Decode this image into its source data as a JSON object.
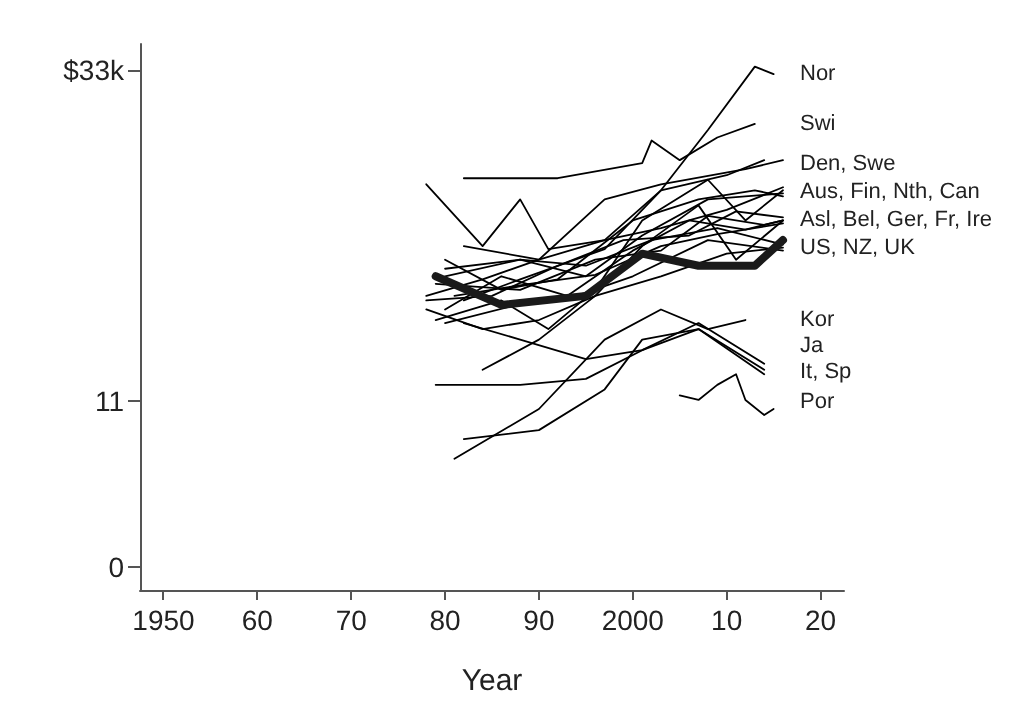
{
  "chart_data": {
    "type": "line",
    "xlabel": "Year",
    "xlim": [
      1947.5,
      2022.5
    ],
    "ylim": [
      -1.5,
      34.7
    ],
    "xticks": [
      1950,
      {
        "value": 1960,
        "label": "60"
      },
      {
        "value": 1970,
        "label": "70"
      },
      {
        "value": 1980,
        "label": "80"
      },
      {
        "value": 1990,
        "label": "90"
      },
      2000,
      {
        "value": 2010,
        "label": "10"
      },
      {
        "value": 2020,
        "label": "20"
      }
    ],
    "yticks": [
      0,
      11,
      {
        "value": 33,
        "label": "$33k"
      }
    ],
    "grid": false,
    "marker": "none",
    "line_style": "solid",
    "series": [
      {
        "color": "#1a1a1a",
        "x": [
          1979,
          1986,
          1995,
          2001,
          2007,
          2013,
          2016
        ],
        "values": [
          19.3,
          17.4,
          18.0,
          20.8,
          20.0,
          20.0,
          21.7
        ]
      },
      {
        "color": "#000000",
        "x": [
          1982,
          1988,
          1997,
          2003,
          2008,
          2013,
          2015
        ],
        "values": [
          17.7,
          19.1,
          21.1,
          25.0,
          29.0,
          33.2,
          32.7
        ]
      },
      {
        "color": "#000000",
        "x": [
          1982,
          1992,
          2001,
          2002,
          2005,
          2009,
          2013
        ],
        "values": [
          25.8,
          25.8,
          26.8,
          28.3,
          27.0,
          28.5,
          29.4
        ]
      },
      {
        "color": "#000000",
        "x": [
          1978,
          1984,
          1988,
          1991,
          1997,
          2003,
          2010,
          2014
        ],
        "values": [
          25.4,
          21.3,
          24.4,
          21.1,
          21.7,
          25.0,
          26.0,
          27.0
        ]
      },
      {
        "color": "#000000",
        "x": [
          1978,
          1984,
          1990,
          1997,
          2003,
          2012,
          2016
        ],
        "values": [
          18.0,
          19.1,
          20.4,
          24.4,
          25.4,
          26.4,
          27.0
        ]
      },
      {
        "color": "#000000",
        "x": [
          1980,
          1986,
          1992,
          2000,
          2007,
          2013,
          2016
        ],
        "values": [
          20.4,
          18.4,
          19.1,
          23.0,
          24.4,
          25.0,
          24.6
        ]
      },
      {
        "color": "#000000",
        "x": [
          1979,
          1986,
          1991,
          1996,
          2001,
          2008,
          2012,
          2016
        ],
        "values": [
          16.4,
          17.7,
          15.8,
          18.4,
          23.0,
          25.7,
          23.0,
          25.0
        ]
      },
      {
        "color": "#000000",
        "x": [
          1980,
          1988,
          1995,
          2001,
          2008,
          2016
        ],
        "values": [
          19.3,
          20.4,
          19.3,
          22.0,
          24.4,
          24.8
        ]
      },
      {
        "color": "#000000",
        "x": [
          1982,
          1990,
          1997,
          2003,
          2010,
          2016
        ],
        "values": [
          21.3,
          20.4,
          21.7,
          22.5,
          23.7,
          25.2
        ]
      },
      {
        "color": "#000000",
        "x": [
          1980,
          1986,
          1993,
          2000,
          2006,
          2012,
          2016
        ],
        "values": [
          17.1,
          19.3,
          18.0,
          21.0,
          23.0,
          22.4,
          23.0
        ]
      },
      {
        "color": "#000000",
        "x": [
          1978,
          1985,
          1992,
          1999,
          2006,
          2011,
          2016
        ],
        "values": [
          17.7,
          18.0,
          20.0,
          21.7,
          22.0,
          23.6,
          23.2
        ]
      },
      {
        "color": "#000000",
        "x": [
          1979,
          1988,
          1996,
          2003,
          2008,
          2014,
          2016
        ],
        "values": [
          18.8,
          18.4,
          20.4,
          21.0,
          23.3,
          22.7,
          23.0
        ]
      },
      {
        "color": "#000000",
        "x": [
          1981,
          1989,
          1996,
          2003,
          2009,
          2016
        ],
        "values": [
          18.0,
          18.8,
          19.4,
          21.3,
          22.1,
          22.8
        ]
      },
      {
        "color": "#000000",
        "x": [
          1984,
          1990,
          1996,
          2001,
          2007,
          2011,
          2016
        ],
        "values": [
          13.1,
          15.1,
          18.0,
          21.3,
          24.0,
          20.4,
          23.0
        ]
      },
      {
        "color": "#000000",
        "x": [
          1980,
          1988,
          1995,
          2002,
          2009,
          2016
        ],
        "values": [
          19.8,
          20.4,
          20.0,
          21.7,
          22.5,
          21.4
        ]
      },
      {
        "color": "#000000",
        "x": [
          1978,
          1984,
          1990,
          1996,
          2003,
          2010,
          2016
        ],
        "values": [
          17.1,
          15.8,
          16.4,
          18.0,
          19.3,
          20.8,
          21.2
        ]
      },
      {
        "color": "#000000",
        "x": [
          1980,
          1987,
          1994,
          2000,
          2008,
          2016
        ],
        "values": [
          16.2,
          17.3,
          18.0,
          19.3,
          21.7,
          21.0
        ]
      },
      {
        "color": "#000000",
        "x": [
          1981,
          1990,
          1997,
          2003,
          2008,
          2012
        ],
        "values": [
          7.2,
          10.5,
          15.1,
          17.1,
          15.8,
          16.4
        ]
      },
      {
        "color": "#000000",
        "x": [
          1982,
          1988,
          1995,
          2001,
          2007,
          2014
        ],
        "values": [
          16.2,
          15.1,
          13.8,
          14.4,
          16.2,
          13.5
        ]
      },
      {
        "color": "#000000",
        "x": [
          1979,
          1988,
          1995,
          2001,
          2007,
          2014
        ],
        "values": [
          12.1,
          12.1,
          12.5,
          14.4,
          15.8,
          12.8
        ]
      },
      {
        "color": "#000000",
        "x": [
          1982,
          1990,
          1997,
          2001,
          2007,
          2014
        ],
        "values": [
          8.5,
          9.1,
          11.8,
          15.1,
          15.8,
          13.1
        ]
      },
      {
        "color": "#000000",
        "x": [
          2005,
          2007,
          2009,
          2011,
          2012,
          2014,
          2015
        ],
        "values": [
          11.4,
          11.1,
          12.1,
          12.8,
          11.1,
          10.1,
          10.5
        ]
      }
    ],
    "annotations": [
      "Nor",
      "Swi",
      "Den, Swe",
      "Aus, Fin, Nth, Can",
      "Asl, Bel, Ger, Fr, Ire",
      "US, NZ, UK",
      "Kor",
      "Ja",
      "It, Sp",
      "Por"
    ]
  }
}
